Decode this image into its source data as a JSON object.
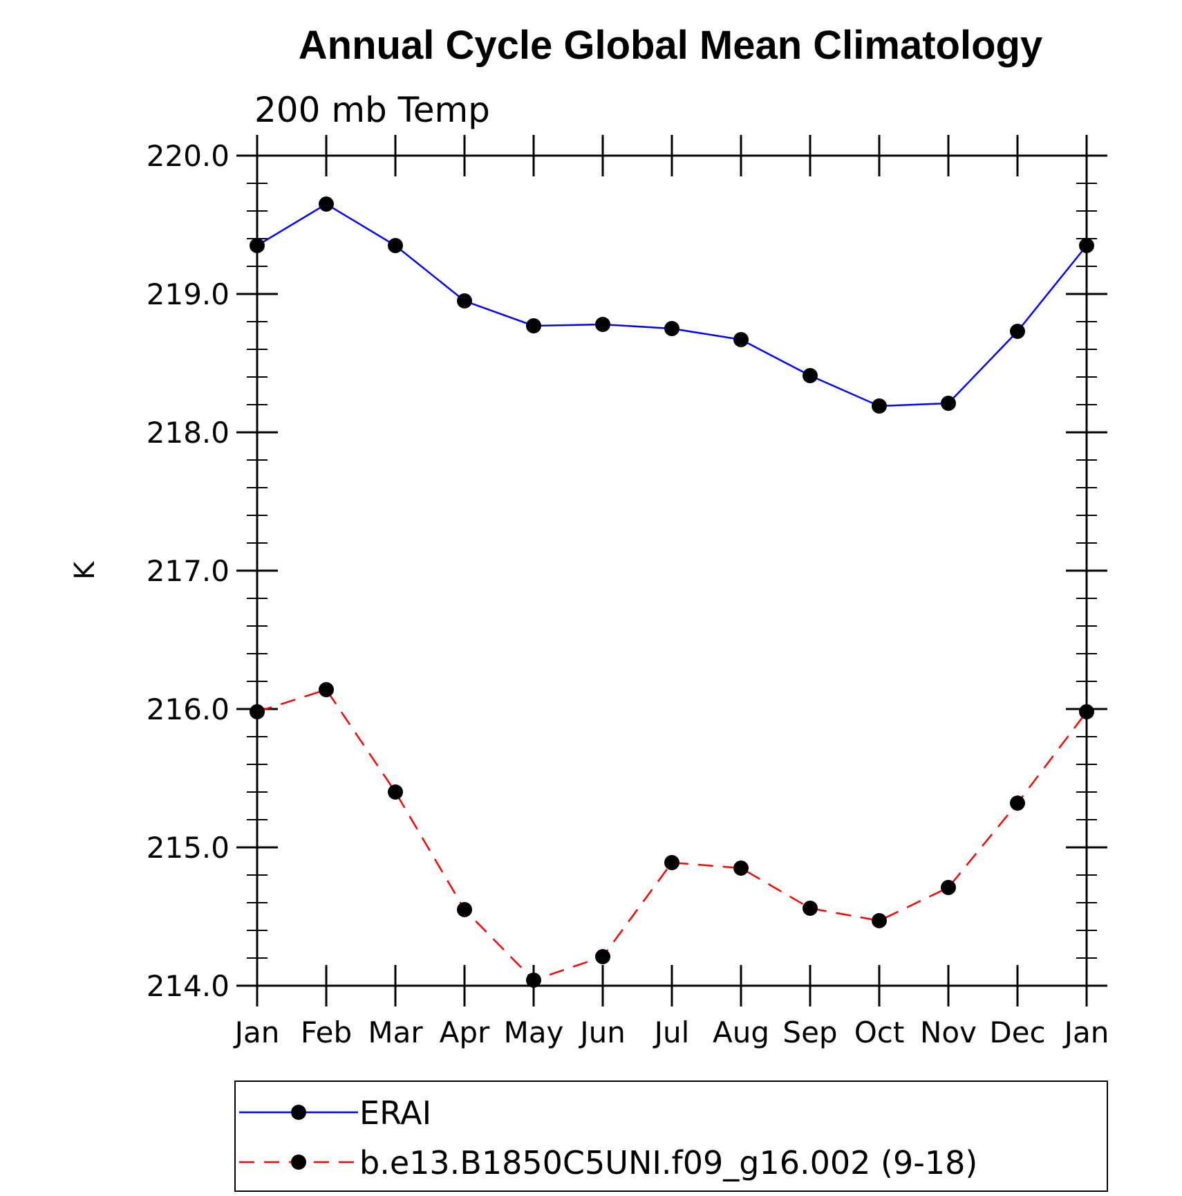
{
  "chart_data": {
    "type": "line",
    "title": "Annual Cycle Global Mean Climatology",
    "subtitle": "200 mb Temp",
    "ylabel": "K",
    "xlabel": "",
    "ylim": [
      214.0,
      220.0
    ],
    "y_major_ticks": [
      214.0,
      215.0,
      216.0,
      217.0,
      218.0,
      219.0,
      220.0
    ],
    "y_tick_labels": [
      "214.0",
      "215.0",
      "216.0",
      "217.0",
      "218.0",
      "219.0",
      "220.0"
    ],
    "y_minor_step": 0.2,
    "categories": [
      "Jan",
      "Feb",
      "Mar",
      "Apr",
      "May",
      "Jun",
      "Jul",
      "Aug",
      "Sep",
      "Oct",
      "Nov",
      "Dec",
      "Jan"
    ],
    "grid": false,
    "legend_position": "bottom",
    "series": [
      {
        "name": "ERAI",
        "color": "#0000ff",
        "dash": "solid",
        "marker": "filled-circle",
        "marker_color": "#000000",
        "values": [
          219.35,
          219.65,
          219.35,
          218.95,
          218.77,
          218.78,
          218.75,
          218.67,
          218.41,
          218.19,
          218.21,
          218.73,
          219.35
        ]
      },
      {
        "name": "b.e13.B1850C5UNI.f09_g16.002 (9-18)",
        "color": "#ff0000",
        "dash": "dashed",
        "marker": "filled-circle",
        "marker_color": "#000000",
        "values": [
          215.98,
          216.14,
          215.4,
          214.55,
          214.04,
          214.21,
          214.89,
          214.85,
          214.56,
          214.47,
          214.71,
          215.32,
          215.98
        ]
      }
    ]
  }
}
